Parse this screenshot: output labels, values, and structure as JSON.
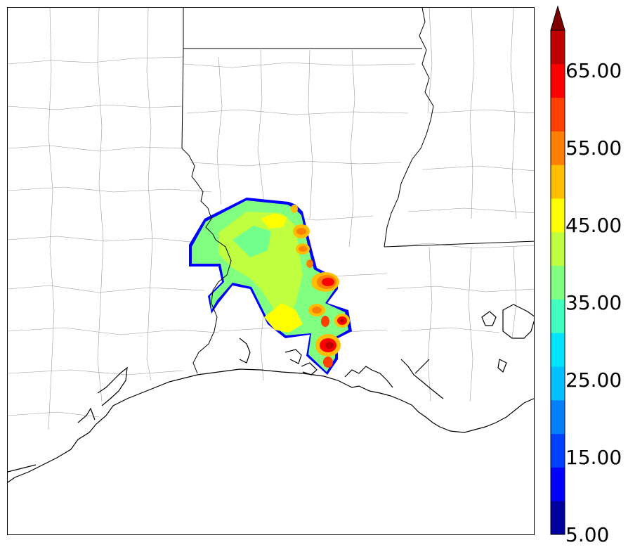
{
  "map": {
    "subject": "radar reflectivity over southern Louisiana / Mississippi Gulf Coast",
    "boundary_colors": {
      "state": "#000000",
      "county": "#9a9a9a",
      "coast": "#000000"
    }
  },
  "colorbar": {
    "min": 5,
    "max": 70,
    "extend": "max",
    "tick_labels": [
      "65.00",
      "55.00",
      "45.00",
      "35.00",
      "25.00",
      "15.00",
      "5.00"
    ],
    "colors": [
      "#00009f",
      "#0000ff",
      "#0040ff",
      "#0080ff",
      "#00c0ff",
      "#00e5ff",
      "#40ffbf",
      "#80ff80",
      "#bfff40",
      "#ffff00",
      "#ffbf00",
      "#ff8000",
      "#ff4000",
      "#ff0000",
      "#bf0000",
      "#800000"
    ]
  }
}
